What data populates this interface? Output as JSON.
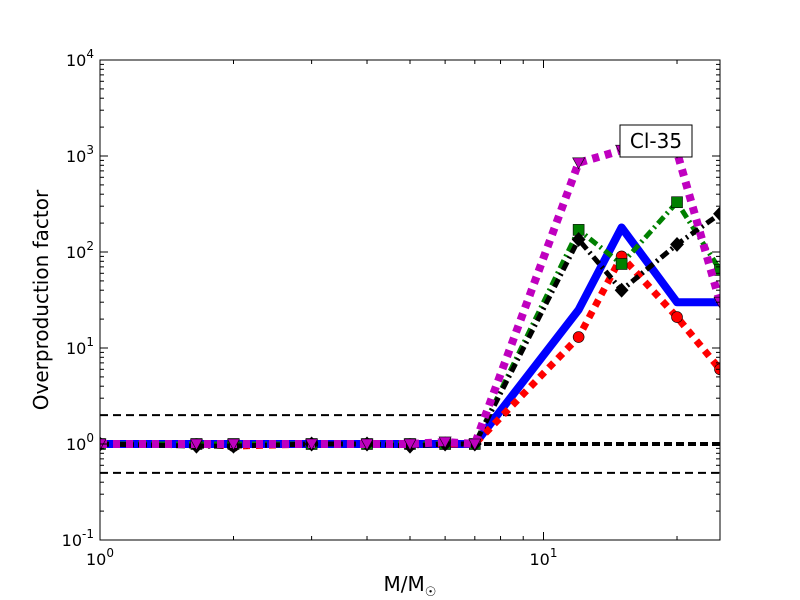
{
  "chart_data": {
    "type": "line",
    "title": "",
    "xlabel": "M/M",
    "xlabel_sub": "☉",
    "ylabel": "Overproduction factor",
    "xscale": "log",
    "yscale": "log",
    "xlim": [
      1,
      25
    ],
    "ylim": [
      0.1,
      10000
    ],
    "grid": false,
    "x_ticks": [
      {
        "value": 1,
        "base": "10",
        "exp": "0"
      },
      {
        "value": 10,
        "base": "10",
        "exp": "1"
      }
    ],
    "y_ticks": [
      {
        "value": 0.1,
        "base": "10",
        "exp": "-1"
      },
      {
        "value": 1,
        "base": "10",
        "exp": "0"
      },
      {
        "value": 10,
        "base": "10",
        "exp": "1"
      },
      {
        "value": 100,
        "base": "10",
        "exp": "2"
      },
      {
        "value": 1000,
        "base": "10",
        "exp": "3"
      },
      {
        "value": 10000,
        "base": "10",
        "exp": "4"
      }
    ],
    "annotation": "Cl-35",
    "reference_lines": [
      {
        "y": 2,
        "style": "dashed-thin",
        "color": "#000000"
      },
      {
        "y": 1,
        "style": "dashed-thick",
        "color": "#000000"
      },
      {
        "y": 0.5,
        "style": "dashed-thin",
        "color": "#000000"
      }
    ],
    "series": [
      {
        "color": "#0000ff",
        "line": "solid",
        "width": 8,
        "marker": "none",
        "x": [
          1,
          1.65,
          2,
          3,
          4,
          5,
          6,
          7,
          12,
          15,
          20,
          25
        ],
        "y": [
          1,
          1,
          1,
          1,
          1,
          1,
          1,
          1,
          25,
          180,
          30,
          30
        ]
      },
      {
        "color": "#ff0000",
        "line": "dotted",
        "width": 7,
        "marker": "circle",
        "x": [
          1,
          1.65,
          2,
          3,
          4,
          5,
          6,
          7,
          12,
          15,
          20,
          25
        ],
        "y": [
          1,
          1,
          0.95,
          1,
          1,
          1,
          1,
          1,
          13,
          90,
          21,
          6
        ]
      },
      {
        "color": "#008000",
        "line": "dashdot",
        "width": 5,
        "marker": "square",
        "x": [
          1,
          1.65,
          2,
          3,
          4,
          5,
          6,
          7,
          12,
          15,
          20,
          25
        ],
        "y": [
          1,
          1,
          1,
          1,
          1,
          1,
          1,
          1,
          170,
          75,
          330,
          65
        ]
      },
      {
        "color": "#000000",
        "line": "dashdot",
        "width": 5,
        "marker": "diamond",
        "x": [
          1,
          1.65,
          2,
          3,
          4,
          5,
          6,
          7,
          12,
          15,
          20,
          25
        ],
        "y": [
          1,
          0.95,
          0.95,
          1,
          1,
          0.95,
          1,
          1,
          135,
          40,
          120,
          250
        ]
      },
      {
        "color": "#bf00bf",
        "line": "dotted",
        "width": 8,
        "marker": "triangle-down",
        "x": [
          1,
          1.65,
          2,
          3,
          4,
          5,
          6,
          7,
          12,
          15,
          20,
          25
        ],
        "y": [
          1,
          1,
          1,
          1,
          1,
          1,
          1.05,
          1,
          850,
          1150,
          1100,
          30
        ]
      }
    ]
  }
}
